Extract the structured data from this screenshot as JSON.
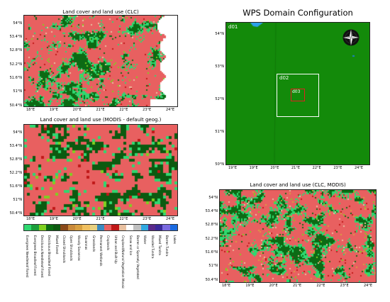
{
  "panels": {
    "clc": {
      "title": "Land cover and land use (CLC)"
    },
    "modis": {
      "title": "Land cover and land use (MODIS - default geog.)"
    },
    "clc_modis": {
      "title": "Land cover and land use (CLC, MODIS)"
    }
  },
  "lat_ticks_left": [
    "54°N",
    "53.4°N",
    "52.8°N",
    "52.2°N",
    "51.6°N",
    "51°N",
    "50.4°N"
  ],
  "lon_ticks_left": [
    "18°E",
    "19°E",
    "20°E",
    "21°E",
    "22°E",
    "23°E",
    "24°E"
  ],
  "wps": {
    "title": "WPS Domain Configuration",
    "lat_ticks": [
      "54°N",
      "53°N",
      "52°N",
      "51°N",
      "50°N"
    ],
    "lon_ticks": [
      "19°E",
      "19°E",
      "20°E",
      "21°E",
      "22°E",
      "23°E",
      "24°E"
    ],
    "domains": [
      {
        "label": "d01",
        "color": "#ffffff"
      },
      {
        "label": "d02",
        "color": "#ffffff"
      },
      {
        "label": "d03",
        "color": "#e02020"
      }
    ],
    "compass": "compass-rose-icon",
    "domain_fill": "#138a0a"
  },
  "legend": [
    {
      "label": "Evergreen Needleleaf Forest",
      "color": "#2fd870"
    },
    {
      "label": "Evergreen Broadleaf Forest",
      "color": "#1a9e3a"
    },
    {
      "label": "Deciduous Needleleaf Forest",
      "color": "#7fd120"
    },
    {
      "label": "Deciduous Broadleaf Forest",
      "color": "#0a6e12"
    },
    {
      "label": "Mixed Forest",
      "color": "#0c5a10"
    },
    {
      "label": "Closed Shrublands",
      "color": "#8a4a1a"
    },
    {
      "label": "Open Shrublands",
      "color": "#c98a3a"
    },
    {
      "label": "Woody Savannas",
      "color": "#d8a040"
    },
    {
      "label": "Savannas",
      "color": "#f0c060"
    },
    {
      "label": "Grasslands",
      "color": "#e8d080"
    },
    {
      "label": "Permanent Wetlands",
      "color": "#3a8ac0"
    },
    {
      "label": "Croplands",
      "color": "#e86060"
    },
    {
      "label": "Urban and Built-Up",
      "color": "#c01818"
    },
    {
      "label": "Cropland/Natural Vegetation Mosaic",
      "color": "#e8c0a0"
    },
    {
      "label": "Snow and Ice",
      "color": "#ffffff"
    },
    {
      "label": "Barren or Sparsely Vegetated",
      "color": "#c0c0c0"
    },
    {
      "label": "Water",
      "color": "#30a8e0"
    },
    {
      "label": "Wooded Tundra",
      "color": "#5a2a8a"
    },
    {
      "label": "Mixed Tundra",
      "color": "#3a2a9a"
    },
    {
      "label": "Barren Tundra",
      "color": "#7a6ae0"
    },
    {
      "label": "Lakes",
      "color": "#1a6ae0"
    }
  ]
}
